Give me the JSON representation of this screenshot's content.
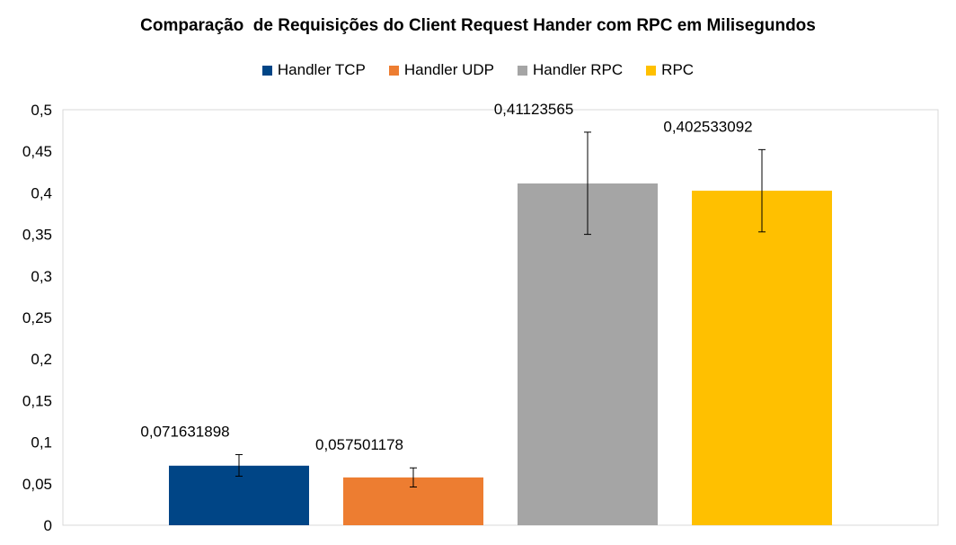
{
  "chart_data": {
    "type": "bar",
    "title": "Comparação  de Requisições do Client Request Hander com RPC em Milisegundos",
    "xlabel": "",
    "ylabel": "",
    "ylim": [
      0,
      0.5
    ],
    "y_ticks": [
      "0",
      "0,05",
      "0,1",
      "0,15",
      "0,2",
      "0,25",
      "0,3",
      "0,35",
      "0,4",
      "0,45",
      "0,5"
    ],
    "grid": false,
    "legend_position": "top",
    "series": [
      {
        "name": "Handler TCP",
        "value": 0.071631898,
        "label": "0,071631898",
        "error_low": 0.059,
        "error_high": 0.085,
        "color": "#004586"
      },
      {
        "name": "Handler UDP",
        "value": 0.057501178,
        "label": "0,057501178",
        "error_low": 0.046,
        "error_high": 0.069,
        "color": "#ed7d31"
      },
      {
        "name": "Handler RPC",
        "value": 0.41123565,
        "label": "0,41123565",
        "error_low": 0.35,
        "error_high": 0.473,
        "color": "#a5a5a5"
      },
      {
        "name": "RPC",
        "value": 0.402533092,
        "label": "0,402533092",
        "error_low": 0.353,
        "error_high": 0.452,
        "color": "#ffc000"
      }
    ]
  }
}
